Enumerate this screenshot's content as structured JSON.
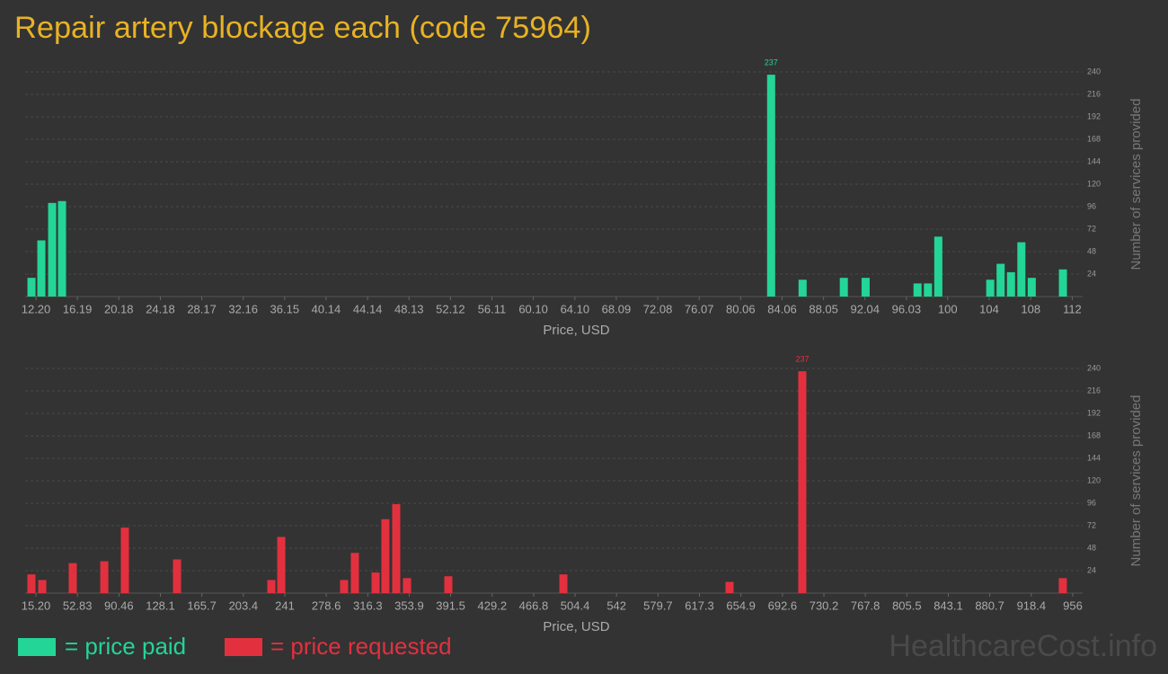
{
  "title": "Repair artery blockage each (code 75964)",
  "watermark": "HealthcareCost.info",
  "chart_data": [
    {
      "type": "bar",
      "name": "= price paid",
      "color": "#23d597",
      "x": [
        11.77,
        12.72,
        13.76,
        14.71,
        83.0,
        86.03,
        90.0,
        92.1,
        97.1,
        98.1,
        99.1,
        104.1,
        105.1,
        106.1,
        107.1,
        108.1,
        111.1
      ],
      "values": [
        20,
        60,
        100,
        102,
        237,
        18,
        20,
        20,
        14,
        14,
        64,
        18,
        35,
        26,
        58,
        20,
        29
      ],
      "xlim": [
        11.16,
        113.0
      ],
      "xticks": [
        {
          "value": 12.2,
          "label": "12.20"
        },
        16.19,
        20.18,
        24.18,
        28.17,
        32.16,
        36.15,
        40.14,
        44.14,
        48.13,
        52.12,
        56.11,
        {
          "value": 60.1,
          "label": "60.10"
        },
        {
          "value": 64.1,
          "label": "64.10"
        },
        68.09,
        72.08,
        76.07,
        80.06,
        84.06,
        88.05,
        92.04,
        96.03,
        100,
        104,
        108,
        112
      ],
      "ylim": [
        0,
        240
      ],
      "yticks": [
        24,
        48,
        72,
        96,
        120,
        144,
        168,
        192,
        216,
        240
      ],
      "xlabel": "Price, USD",
      "ylabel": "Number of services provided",
      "grid": true
    },
    {
      "type": "bar",
      "name": "= price requested",
      "color": "#e3303f",
      "x": [
        11.1,
        20.9,
        48.6,
        77.2,
        95.9,
        143.2,
        228.8,
        237.8,
        294.8,
        304.6,
        323.4,
        332.3,
        342.1,
        351.9,
        389.4,
        493.8,
        644.6,
        710.6,
        947.0
      ],
      "values": [
        20,
        14,
        32,
        34,
        70,
        36,
        14,
        60,
        14,
        43,
        22,
        79,
        95,
        16,
        18,
        20,
        12,
        237,
        16
      ],
      "xlim": [
        5.4,
        965.0
      ],
      "xticks": [
        {
          "value": 15.2,
          "label": "15.20"
        },
        52.83,
        90.46,
        128.1,
        165.7,
        203.4,
        241,
        278.6,
        316.3,
        353.9,
        391.5,
        429.2,
        466.8,
        504.4,
        542,
        579.7,
        617.3,
        654.9,
        692.6,
        730.2,
        767.8,
        805.5,
        843.1,
        880.7,
        918.4,
        956
      ],
      "ylim": [
        0,
        240
      ],
      "yticks": [
        24,
        48,
        72,
        96,
        120,
        144,
        168,
        192,
        216,
        240
      ],
      "xlabel": "Price, USD",
      "ylabel": "Number of services provided",
      "grid": true
    }
  ]
}
